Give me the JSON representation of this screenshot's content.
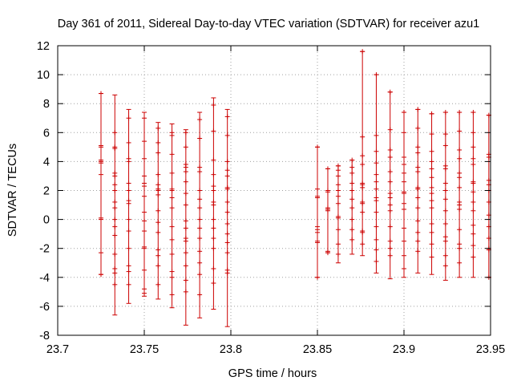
{
  "chart_data": {
    "type": "scatter",
    "title": "Day 361 of 2011, Sidereal Day-to-day VTEC variation (SDTVAR) for receiver azu1",
    "xlabel": "GPS time / hours",
    "ylabel": "SDTVAR / TECUs",
    "xlim": [
      23.7,
      23.95
    ],
    "ylim": [
      -8,
      12
    ],
    "xticks": [
      23.7,
      23.75,
      23.8,
      23.85,
      23.9,
      23.95
    ],
    "yticks": [
      -8,
      -6,
      -4,
      -2,
      0,
      2,
      4,
      6,
      8,
      10,
      12
    ],
    "xtick_labels": [
      "23.7",
      "23.75",
      "23.8",
      "23.85",
      "23.9",
      "23.95"
    ],
    "ytick_labels": [
      "-8",
      "-6",
      "-4",
      "-2",
      "0",
      "2",
      "4",
      "6",
      "8",
      "10",
      "12"
    ],
    "grid": true,
    "series_color": "#cc0000",
    "series": [
      {
        "x": 23.725,
        "min": -3.8,
        "max": 8.7,
        "points": [
          8.7,
          5.1,
          5.0,
          4.1,
          4.0,
          3.9,
          3.1,
          0.1,
          0.0,
          -2.3,
          -3.8
        ]
      },
      {
        "x": 23.733,
        "min": -6.6,
        "max": 8.6,
        "points": [
          6.0,
          5.0,
          4.9,
          3.2,
          3.0,
          2.4,
          2.0,
          1.2,
          0.8,
          0.0,
          -0.5,
          -1.1,
          -2.4,
          -3.4,
          -3.7,
          -4.5
        ]
      },
      {
        "x": 23.741,
        "min": -5.8,
        "max": 7.6,
        "points": [
          7.0,
          5.3,
          4.2,
          4.0,
          2.5,
          2.0,
          1.3,
          1.1,
          0.0,
          -0.8,
          -2.0,
          -3.2,
          -3.6,
          -4.5
        ]
      },
      {
        "x": 23.75,
        "min": -5.3,
        "max": 7.4,
        "points": [
          7.0,
          5.4,
          4.2,
          3.0,
          2.5,
          2.3,
          1.6,
          0.5,
          -0.1,
          -0.8,
          -1.9,
          -2.0,
          -3.5,
          -4.8,
          -5.1
        ]
      },
      {
        "x": 23.758,
        "min": -5.5,
        "max": 6.7,
        "points": [
          6.3,
          5.3,
          4.6,
          3.1,
          2.4,
          2.1,
          2.0,
          1.7,
          0.6,
          -0.2,
          -0.9,
          -2.1,
          -2.5,
          -3.2,
          -4.5
        ]
      },
      {
        "x": 23.766,
        "min": -6.1,
        "max": 6.6,
        "points": [
          6.0,
          5.8,
          4.5,
          3.2,
          2.1,
          2.0,
          1.5,
          0.8,
          -0.5,
          -1.4,
          -2.4,
          -3.6,
          -4.0,
          -5.2
        ]
      },
      {
        "x": 23.774,
        "min": -7.3,
        "max": 6.2,
        "points": [
          6.0,
          5.0,
          3.8,
          3.6,
          3.3,
          2.6,
          1.8,
          1.0,
          -0.1,
          -0.6,
          -1.3,
          -1.5,
          -2.3,
          -3.2,
          -4.2,
          -5.0
        ]
      },
      {
        "x": 23.782,
        "min": -6.8,
        "max": 7.4,
        "points": [
          6.9,
          5.6,
          3.6,
          3.3,
          2.0,
          1.4,
          0.8,
          0.0,
          -0.6,
          -1.3,
          -2.2,
          -3.0,
          -3.8,
          -5.2
        ]
      },
      {
        "x": 23.79,
        "min": -6.2,
        "max": 8.4,
        "points": [
          7.9,
          6.1,
          4.1,
          3.1,
          2.3,
          2.0,
          1.2,
          1.0,
          0.0,
          -0.6,
          -1.3,
          -2.0,
          -3.4,
          -4.4
        ]
      },
      {
        "x": 23.798,
        "min": -7.4,
        "max": 7.6,
        "points": [
          7.1,
          5.8,
          4.0,
          3.4,
          3.0,
          2.2,
          2.1,
          1.2,
          0.5,
          -0.3,
          -1.0,
          -1.6,
          -2.3,
          -3.5,
          -3.7
        ]
      },
      {
        "x": 23.85,
        "min": -4.0,
        "max": 5.0,
        "points": [
          5.0,
          2.1,
          1.6,
          1.5,
          -0.5,
          -0.7,
          -0.9,
          -1.5,
          -1.6,
          -4.0
        ]
      },
      {
        "x": 23.856,
        "min": -2.3,
        "max": 3.5,
        "points": [
          3.5,
          2.0,
          1.9,
          0.8,
          0.7,
          0.6,
          -2.2,
          -2.3
        ]
      },
      {
        "x": 23.862,
        "min": -3.0,
        "max": 3.7,
        "points": [
          3.7,
          3.4,
          3.0,
          2.4,
          2.0,
          1.6,
          1.1,
          0.2,
          0.1,
          -0.7,
          -1.7,
          -2.4
        ]
      },
      {
        "x": 23.87,
        "min": -2.4,
        "max": 4.1,
        "points": [
          4.1,
          3.6,
          3.2,
          2.5,
          2.0,
          1.4,
          0.8,
          0.0,
          -0.7,
          -1.4
        ]
      },
      {
        "x": 23.876,
        "min": -2.5,
        "max": 11.6,
        "points": [
          11.6,
          5.7,
          4.4,
          3.8,
          2.5,
          2.4,
          2.2,
          1.2,
          1.1,
          0.5,
          -0.8,
          -0.9,
          -1.7
        ]
      },
      {
        "x": 23.884,
        "min": -3.7,
        "max": 10.0,
        "points": [
          10.0,
          5.8,
          4.7,
          3.9,
          3.1,
          2.6,
          2.1,
          1.5,
          1.3,
          0.5,
          -0.5,
          -1.4,
          -2.1,
          -2.9
        ]
      },
      {
        "x": 23.892,
        "min": -4.1,
        "max": 8.8,
        "points": [
          8.8,
          6.2,
          4.8,
          4.3,
          3.3,
          2.6,
          1.8,
          1.5,
          1.0,
          0.6,
          -0.5,
          -1.5,
          -2.0,
          -2.5
        ]
      },
      {
        "x": 23.9,
        "min": -4.0,
        "max": 7.4,
        "points": [
          7.4,
          6.0,
          4.3,
          3.8,
          3.2,
          2.6,
          1.9,
          1.8,
          1.1,
          0.7,
          -0.6,
          -1.5,
          -2.5,
          -3.4
        ]
      },
      {
        "x": 23.908,
        "min": -3.7,
        "max": 7.6,
        "points": [
          7.6,
          6.3,
          5.0,
          4.6,
          3.6,
          3.3,
          2.2,
          2.1,
          1.5,
          0.8,
          -0.1,
          -0.9,
          -1.5,
          -2.2
        ]
      },
      {
        "x": 23.916,
        "min": -3.8,
        "max": 7.3,
        "points": [
          7.3,
          5.9,
          4.7,
          4.0,
          3.5,
          2.9,
          2.2,
          1.8,
          1.3,
          0.8,
          -0.3,
          -0.9,
          -1.7,
          -2.6
        ]
      },
      {
        "x": 23.924,
        "min": -4.2,
        "max": 7.4,
        "points": [
          7.4,
          5.9,
          5.1,
          3.7,
          3.5,
          2.5,
          2.0,
          1.4,
          0.6,
          -0.3,
          -1.2,
          -1.5,
          -2.5,
          -3.2
        ]
      },
      {
        "x": 23.932,
        "min": -4.0,
        "max": 7.4,
        "points": [
          7.4,
          6.1,
          4.8,
          4.2,
          3.2,
          2.9,
          2.2,
          1.2,
          1.0,
          0.7,
          -0.7,
          -1.7,
          -2.0,
          -3.0
        ]
      },
      {
        "x": 23.94,
        "min": -4.0,
        "max": 7.4,
        "points": [
          7.4,
          6.0,
          5.0,
          4.2,
          3.8,
          2.6,
          2.5,
          1.9,
          1.2,
          0.6,
          -0.4,
          -1.0,
          -1.8,
          -2.6
        ]
      },
      {
        "x": 23.949,
        "min": -4.0,
        "max": 7.2,
        "points": [
          7.2,
          4.5,
          4.3,
          2.7,
          2.4,
          2.0,
          1.2,
          0.3,
          -0.5,
          -1.3,
          -2.0,
          -2.1,
          -4.0
        ]
      }
    ]
  }
}
